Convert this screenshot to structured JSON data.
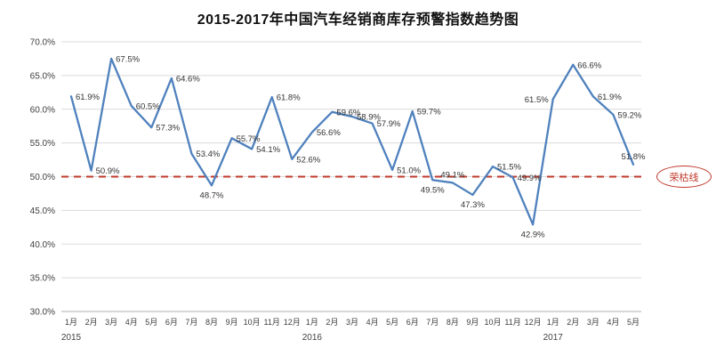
{
  "title": "2015-2017年中国汽车经销商库存预警指数趋势图",
  "chart_data": {
    "type": "line",
    "title": "2015-2017年中国汽车经销商库存预警指数趋势图",
    "x_labels": [
      "1月",
      "2月",
      "3月",
      "4月",
      "5月",
      "6月",
      "7月",
      "8月",
      "9月",
      "10月",
      "11月",
      "12月",
      "1月",
      "2月",
      "3月",
      "4月",
      "5月",
      "6月",
      "7月",
      "8月",
      "9月",
      "10月",
      "11月",
      "12月",
      "1月",
      "2月",
      "3月",
      "4月",
      "5月"
    ],
    "year_labels": [
      {
        "index": 0,
        "label": "2015"
      },
      {
        "index": 12,
        "label": "2016"
      },
      {
        "index": 24,
        "label": "2017"
      }
    ],
    "values": [
      61.9,
      50.9,
      67.5,
      60.5,
      57.3,
      64.6,
      53.4,
      48.7,
      55.7,
      54.1,
      61.8,
      52.6,
      56.6,
      59.6,
      58.9,
      57.9,
      51.0,
      59.7,
      49.5,
      49.1,
      47.3,
      51.5,
      49.9,
      42.9,
      61.5,
      66.6,
      61.9,
      59.2,
      51.8
    ],
    "point_labels": [
      "61.9%",
      "50.9%",
      "67.5%",
      "60.5%",
      "57.3%",
      "64.6%",
      "53.4%",
      "48.7%",
      "55.7%",
      "54.1%",
      "61.8%",
      "52.6%",
      "56.6%",
      "59.6%",
      "58.9%",
      "57.9%",
      "51.0%",
      "59.7%",
      "49.5%",
      "49.1%",
      "47.3%",
      "51.5%",
      "49.9%",
      "42.9%",
      "61.5%",
      "66.6%",
      "61.9%",
      "59.2%",
      "51.8%"
    ],
    "label_side": [
      "right",
      "right",
      "right",
      "right",
      "right",
      "right",
      "right",
      "below",
      "right",
      "right",
      "right",
      "right",
      "right",
      "right",
      "right",
      "right",
      "right",
      "right",
      "below",
      "above",
      "below",
      "right",
      "right",
      "below",
      "left",
      "right",
      "right",
      "right",
      "above"
    ],
    "ylim": [
      30,
      70
    ],
    "y_ticks": [
      "30.0%",
      "35.0%",
      "40.0%",
      "45.0%",
      "50.0%",
      "55.0%",
      "60.0%",
      "65.0%",
      "70.0%"
    ],
    "y_tick_values": [
      30,
      35,
      40,
      45,
      50,
      55,
      60,
      65,
      70
    ],
    "reference_line": {
      "value": 50,
      "label": "荣枯线",
      "color": "#c0392b"
    },
    "line_color": "#4f81bd",
    "grid_color": "#dadada",
    "axis_color": "#b0b0b0",
    "label_color": "#333333",
    "tick_color": "#404040",
    "grid": true,
    "legend": "none"
  }
}
